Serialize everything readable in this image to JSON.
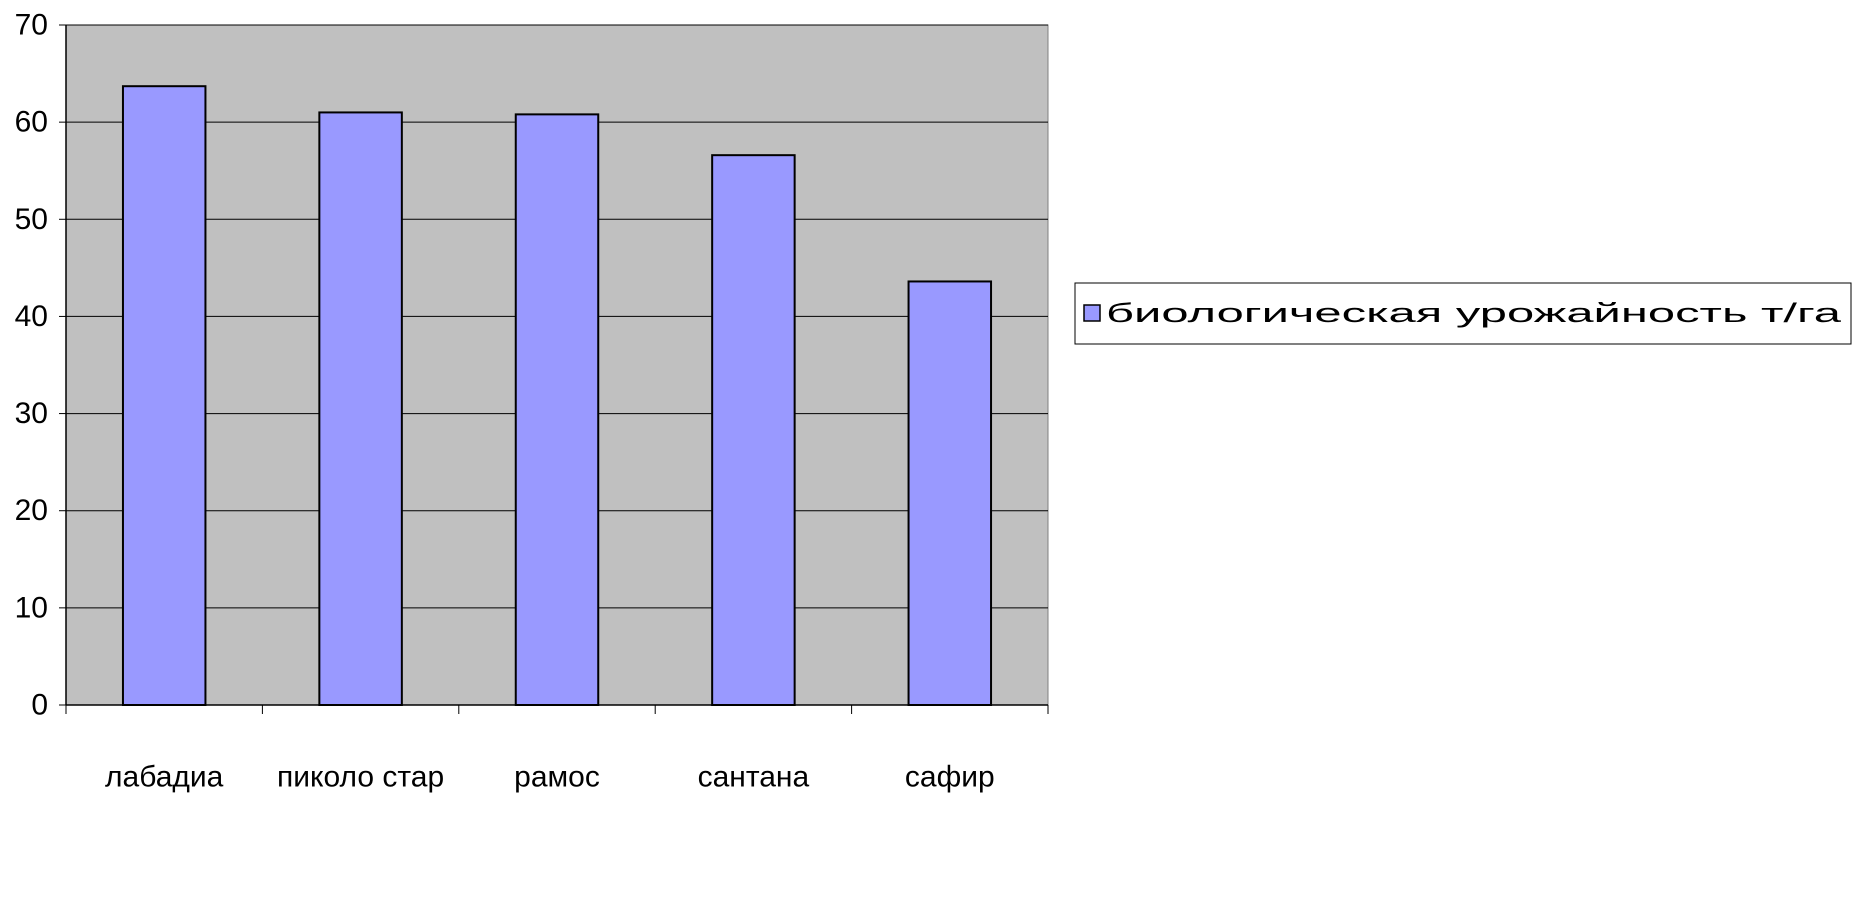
{
  "chart_data": {
    "type": "bar",
    "categories": [
      "лабадиа",
      "пиколо стар",
      "рамос",
      "сантана",
      "сафир"
    ],
    "series": [
      {
        "name": "биологическая урожайность т/га",
        "values": [
          63.7,
          61.0,
          60.8,
          56.6,
          43.6
        ]
      }
    ],
    "ylim": [
      0,
      70
    ],
    "yticks": [
      "0",
      "10",
      "20",
      "30",
      "40",
      "50",
      "60",
      "70"
    ],
    "grid": true,
    "legend_position": "right",
    "colors": {
      "plot_background": "#C0C0C0",
      "bar_fill": "#9999FF",
      "bar_stroke": "#000000",
      "gridline": "#000000"
    }
  }
}
